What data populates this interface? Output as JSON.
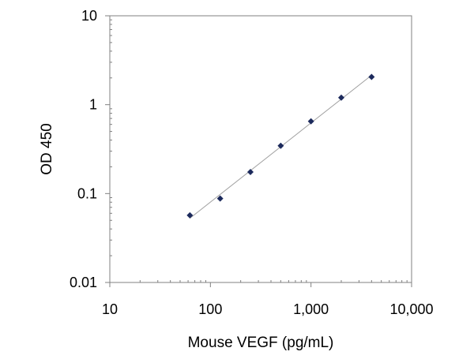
{
  "chart_data": {
    "type": "scatter",
    "title": "",
    "xlabel": "Mouse VEGF  (pg/mL)",
    "ylabel": "OD 450",
    "x_scale": "log",
    "y_scale": "log",
    "xlim": [
      10,
      10000
    ],
    "ylim": [
      0.01,
      10
    ],
    "x_ticks": [
      {
        "value": 10,
        "label": "10"
      },
      {
        "value": 100,
        "label": "100"
      },
      {
        "value": 1000,
        "label": "1,000"
      },
      {
        "value": 10000,
        "label": "10,000"
      }
    ],
    "y_ticks": [
      {
        "value": 10,
        "label": "10"
      },
      {
        "value": 1,
        "label": "1"
      },
      {
        "value": 0.1,
        "label": "0.1"
      },
      {
        "value": 0.01,
        "label": "0.01"
      }
    ],
    "grid": false,
    "legend": "none",
    "trendline": true,
    "series": [
      {
        "x": [
          62.5,
          125,
          250,
          500,
          1000,
          2000,
          4000
        ],
        "y": [
          0.057,
          0.088,
          0.175,
          0.345,
          0.65,
          1.2,
          2.05
        ]
      }
    ],
    "colors": {
      "marker": "#1c2a5c",
      "trendline": "#a0a0a0",
      "frame": "#808080"
    }
  }
}
